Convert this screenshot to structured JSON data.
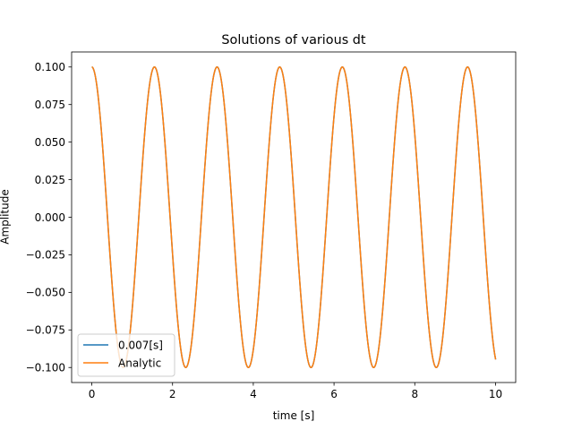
{
  "chart_data": {
    "type": "line",
    "title": "Solutions of various dt",
    "xlabel": "time [s]",
    "ylabel": "Amplitude",
    "xlim": [
      -0.5,
      10.5
    ],
    "ylim": [
      -0.11,
      0.11
    ],
    "x_ticks": [
      0,
      2,
      4,
      6,
      8,
      10
    ],
    "x_tick_labels": [
      "0",
      "2",
      "4",
      "6",
      "8",
      "10"
    ],
    "y_ticks": [
      -0.1,
      -0.075,
      -0.05,
      -0.025,
      0.0,
      0.025,
      0.05,
      0.075,
      0.1
    ],
    "y_tick_labels": [
      "−0.100",
      "−0.075",
      "−0.050",
      "−0.025",
      "0.000",
      "0.025",
      "0.050",
      "0.075",
      "0.100"
    ],
    "grid": false,
    "legend_position": "lower-left",
    "series": [
      {
        "name": "0.007[s]",
        "color": "#1f77b4",
        "function": "amplitude*cos(omega*t)",
        "amplitude": 0.1,
        "omega": 4.05,
        "t_range": [
          0,
          10
        ],
        "dt": 0.007
      },
      {
        "name": "Analytic",
        "color": "#ff7f0e",
        "function": "amplitude*cos(omega*t)",
        "amplitude": 0.1,
        "omega": 4.05,
        "t_range": [
          0,
          10
        ],
        "dt": 0.007
      }
    ]
  }
}
